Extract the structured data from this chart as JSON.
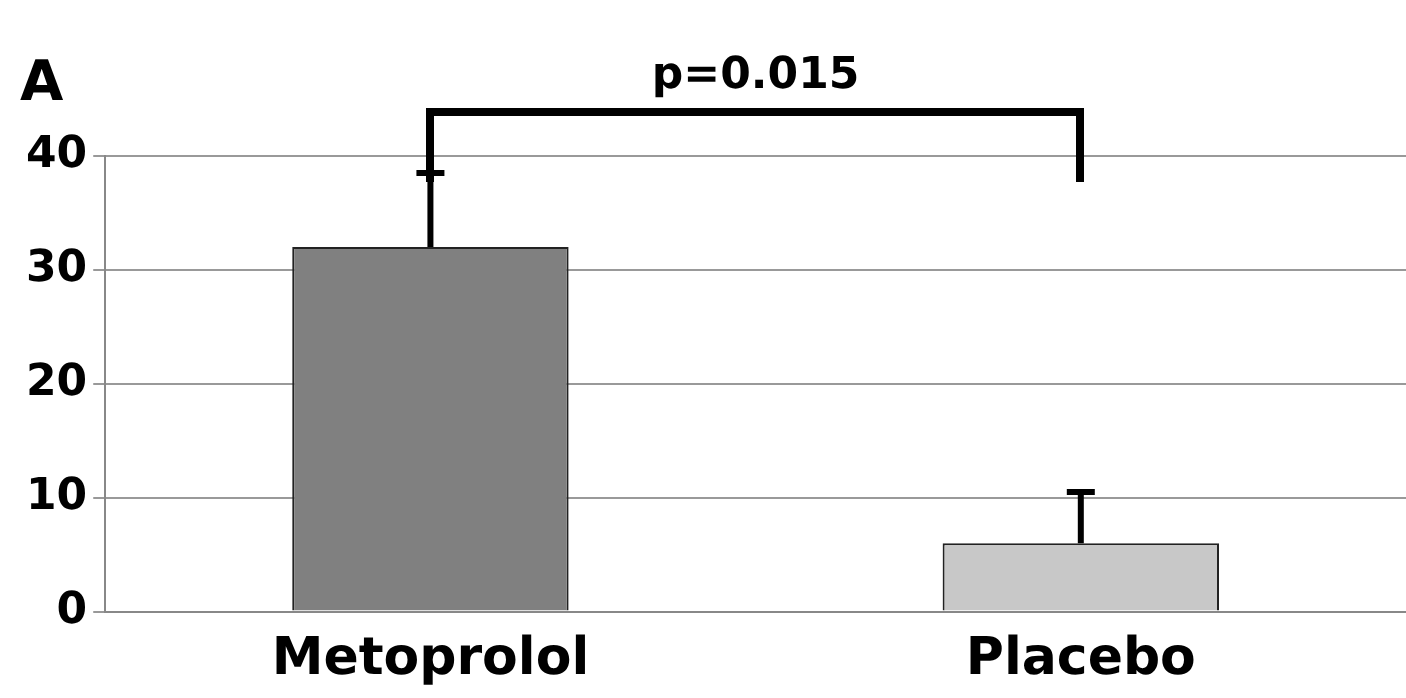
{
  "chart_data": {
    "type": "bar",
    "categories": [
      "Metoprolol",
      "Placebo"
    ],
    "values": [
      32,
      6
    ],
    "colors": [
      "#808080",
      "#c8c8c8"
    ],
    "errors": [
      [
        32,
        38.5
      ],
      [
        6,
        10.5
      ]
    ],
    "ylim": [
      0,
      40
    ],
    "yticks": [
      0,
      10,
      20,
      30,
      40
    ],
    "grid": "y",
    "legend": false,
    "annotations": [
      "A",
      "p=0.015"
    ]
  }
}
